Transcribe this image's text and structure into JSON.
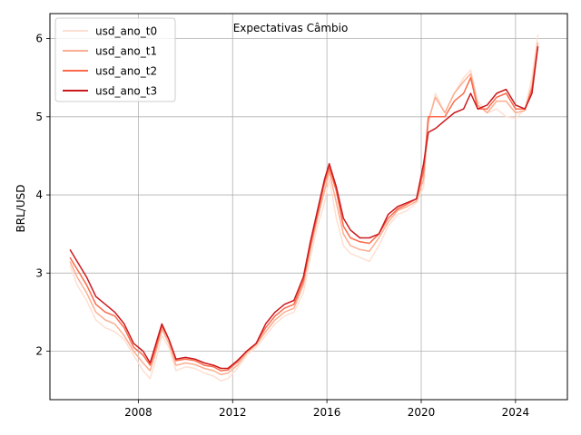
{
  "chart_data": {
    "type": "line",
    "title": "Expectativas Câmbio",
    "xlabel": "",
    "ylabel": "BRL/USD",
    "xlim": [
      2004.25,
      2026.2
    ],
    "ylim": [
      1.38,
      6.32
    ],
    "xticks": [
      2008,
      2012,
      2016,
      2020,
      2024
    ],
    "yticks": [
      2,
      3,
      4,
      5,
      6
    ],
    "grid": true,
    "legend_position": "top-left",
    "series": [
      {
        "name": "usd_ano_t0",
        "color": "#fee0d2",
        "x": [
          2005.1,
          2005.4,
          2005.8,
          2006.2,
          2006.6,
          2007.0,
          2007.4,
          2007.8,
          2008.2,
          2008.5,
          2008.75,
          2009.0,
          2009.3,
          2009.6,
          2010.0,
          2010.4,
          2010.8,
          2011.2,
          2011.5,
          2011.8,
          2012.2,
          2012.6,
          2013.0,
          2013.4,
          2013.8,
          2014.2,
          2014.6,
          2015.0,
          2015.3,
          2015.6,
          2015.9,
          2016.1,
          2016.4,
          2016.7,
          2017.0,
          2017.4,
          2017.8,
          2018.2,
          2018.6,
          2019.0,
          2019.4,
          2019.8,
          2020.1,
          2020.3,
          2020.6,
          2021.0,
          2021.4,
          2021.8,
          2022.1,
          2022.4,
          2022.8,
          2023.2,
          2023.6,
          2024.0,
          2024.4,
          2024.7,
          2024.95
        ],
        "values": [
          3.1,
          2.85,
          2.65,
          2.4,
          2.3,
          2.25,
          2.15,
          1.95,
          1.75,
          1.65,
          1.9,
          2.2,
          2.05,
          1.75,
          1.8,
          1.78,
          1.72,
          1.68,
          1.62,
          1.65,
          1.78,
          1.95,
          2.05,
          2.2,
          2.35,
          2.45,
          2.5,
          2.75,
          3.2,
          3.6,
          3.9,
          4.2,
          3.7,
          3.35,
          3.25,
          3.2,
          3.15,
          3.35,
          3.6,
          3.75,
          3.8,
          3.9,
          4.1,
          4.9,
          5.3,
          5.05,
          5.3,
          5.5,
          5.6,
          5.2,
          5.05,
          5.1,
          5.0,
          4.98,
          5.1,
          5.5,
          6.05
        ]
      },
      {
        "name": "usd_ano_t1",
        "color": "#fcae91",
        "x": [
          2005.1,
          2005.4,
          2005.8,
          2006.2,
          2006.6,
          2007.0,
          2007.4,
          2007.8,
          2008.2,
          2008.5,
          2008.75,
          2009.0,
          2009.3,
          2009.6,
          2010.0,
          2010.4,
          2010.8,
          2011.2,
          2011.5,
          2011.8,
          2012.2,
          2012.6,
          2013.0,
          2013.4,
          2013.8,
          2014.2,
          2014.6,
          2015.0,
          2015.3,
          2015.6,
          2015.9,
          2016.1,
          2016.4,
          2016.7,
          2017.0,
          2017.4,
          2017.8,
          2018.2,
          2018.6,
          2019.0,
          2019.4,
          2019.8,
          2020.1,
          2020.3,
          2020.6,
          2021.0,
          2021.4,
          2021.8,
          2022.1,
          2022.4,
          2022.8,
          2023.2,
          2023.6,
          2024.0,
          2024.4,
          2024.7,
          2024.95
        ],
        "values": [
          3.15,
          2.95,
          2.75,
          2.5,
          2.4,
          2.35,
          2.2,
          2.0,
          1.85,
          1.75,
          2.0,
          2.28,
          2.1,
          1.82,
          1.85,
          1.83,
          1.78,
          1.75,
          1.7,
          1.72,
          1.82,
          1.98,
          2.08,
          2.25,
          2.4,
          2.5,
          2.55,
          2.85,
          3.3,
          3.7,
          4.05,
          4.3,
          3.9,
          3.5,
          3.35,
          3.3,
          3.28,
          3.45,
          3.65,
          3.8,
          3.85,
          3.92,
          4.2,
          4.95,
          5.25,
          5.05,
          5.3,
          5.45,
          5.55,
          5.15,
          5.05,
          5.2,
          5.2,
          5.05,
          5.08,
          5.4,
          5.95
        ]
      },
      {
        "name": "usd_ano_t2",
        "color": "#fb6a4a",
        "x": [
          2005.1,
          2005.4,
          2005.8,
          2006.2,
          2006.6,
          2007.0,
          2007.4,
          2007.8,
          2008.2,
          2008.5,
          2008.75,
          2009.0,
          2009.3,
          2009.6,
          2010.0,
          2010.4,
          2010.8,
          2011.2,
          2011.5,
          2011.8,
          2012.2,
          2012.6,
          2013.0,
          2013.4,
          2013.8,
          2014.2,
          2014.6,
          2015.0,
          2015.3,
          2015.6,
          2015.9,
          2016.1,
          2016.4,
          2016.7,
          2017.0,
          2017.4,
          2017.8,
          2018.2,
          2018.6,
          2019.0,
          2019.4,
          2019.8,
          2020.1,
          2020.3,
          2020.6,
          2021.0,
          2021.4,
          2021.8,
          2022.1,
          2022.4,
          2022.8,
          2023.2,
          2023.6,
          2024.0,
          2024.4,
          2024.7,
          2024.95
        ],
        "values": [
          3.2,
          3.05,
          2.85,
          2.6,
          2.5,
          2.45,
          2.3,
          2.05,
          1.95,
          1.82,
          2.05,
          2.32,
          2.15,
          1.88,
          1.9,
          1.88,
          1.82,
          1.8,
          1.75,
          1.76,
          1.86,
          2.0,
          2.1,
          2.3,
          2.45,
          2.55,
          2.6,
          2.9,
          3.35,
          3.75,
          4.15,
          4.35,
          4.05,
          3.6,
          3.45,
          3.4,
          3.38,
          3.5,
          3.7,
          3.82,
          3.88,
          3.95,
          4.3,
          5.0,
          5.0,
          5.0,
          5.2,
          5.3,
          5.5,
          5.1,
          5.1,
          5.25,
          5.3,
          5.1,
          5.1,
          5.35,
          5.9
        ]
      },
      {
        "name": "usd_ano_t3",
        "color": "#cb181d",
        "x": [
          2005.1,
          2005.4,
          2005.8,
          2006.2,
          2006.6,
          2007.0,
          2007.4,
          2007.8,
          2008.2,
          2008.5,
          2008.75,
          2009.0,
          2009.3,
          2009.6,
          2010.0,
          2010.4,
          2010.8,
          2011.2,
          2011.5,
          2011.8,
          2012.2,
          2012.6,
          2013.0,
          2013.4,
          2013.8,
          2014.2,
          2014.6,
          2015.0,
          2015.3,
          2015.6,
          2015.9,
          2016.1,
          2016.4,
          2016.7,
          2017.0,
          2017.4,
          2017.8,
          2018.2,
          2018.6,
          2019.0,
          2019.4,
          2019.8,
          2020.1,
          2020.3,
          2020.6,
          2021.0,
          2021.4,
          2021.8,
          2022.1,
          2022.4,
          2022.8,
          2023.2,
          2023.6,
          2024.0,
          2024.4,
          2024.7,
          2024.95
        ],
        "values": [
          3.3,
          3.15,
          2.95,
          2.7,
          2.6,
          2.5,
          2.35,
          2.1,
          2.0,
          1.85,
          2.1,
          2.35,
          2.15,
          1.9,
          1.92,
          1.9,
          1.85,
          1.82,
          1.78,
          1.78,
          1.88,
          2.0,
          2.1,
          2.35,
          2.5,
          2.6,
          2.65,
          2.95,
          3.4,
          3.8,
          4.2,
          4.4,
          4.1,
          3.7,
          3.55,
          3.45,
          3.45,
          3.5,
          3.75,
          3.85,
          3.9,
          3.95,
          4.4,
          4.8,
          4.85,
          4.95,
          5.05,
          5.1,
          5.3,
          5.1,
          5.15,
          5.3,
          5.35,
          5.15,
          5.1,
          5.3,
          5.9
        ]
      }
    ]
  }
}
